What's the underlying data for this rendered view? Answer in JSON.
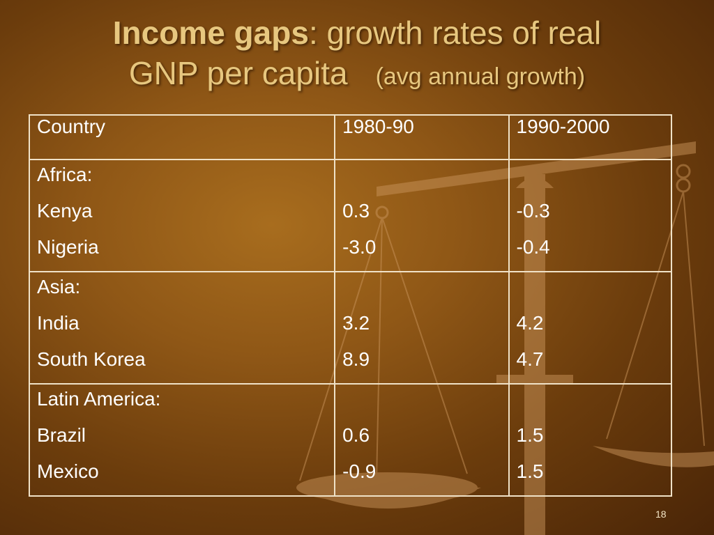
{
  "title": {
    "bold_part": "Income gaps",
    "rest_part": ": growth rates of real",
    "line2": "GNP per capita",
    "note": "(avg annual growth)"
  },
  "table": {
    "headers": [
      "Country",
      "1980-90",
      "1990-2000"
    ],
    "groups": [
      {
        "region": "Africa:",
        "rows": [
          {
            "country": "Kenya",
            "v1980_90": "0.3",
            "v1990_2000": "-0.3"
          },
          {
            "country": "Nigeria",
            "v1980_90": "-3.0",
            "v1990_2000": "-0.4"
          }
        ]
      },
      {
        "region": "Asia:",
        "rows": [
          {
            "country": "India",
            "v1980_90": "3.2",
            "v1990_2000": "4.2"
          },
          {
            "country": "South Korea",
            "v1980_90": "8.9",
            "v1990_2000": "4.7"
          }
        ]
      },
      {
        "region": "Latin America:",
        "rows": [
          {
            "country": "Brazil",
            "v1980_90": "0.6",
            "v1990_2000": "1.5"
          },
          {
            "country": "Mexico",
            "v1980_90": "-0.9",
            "v1990_2000": "1.5"
          }
        ]
      }
    ]
  },
  "slide_number": "18",
  "colors": {
    "title": "#e7c77f",
    "table_text": "#ffffff",
    "table_border": "#f0e2c8",
    "background": "#8f5716"
  }
}
